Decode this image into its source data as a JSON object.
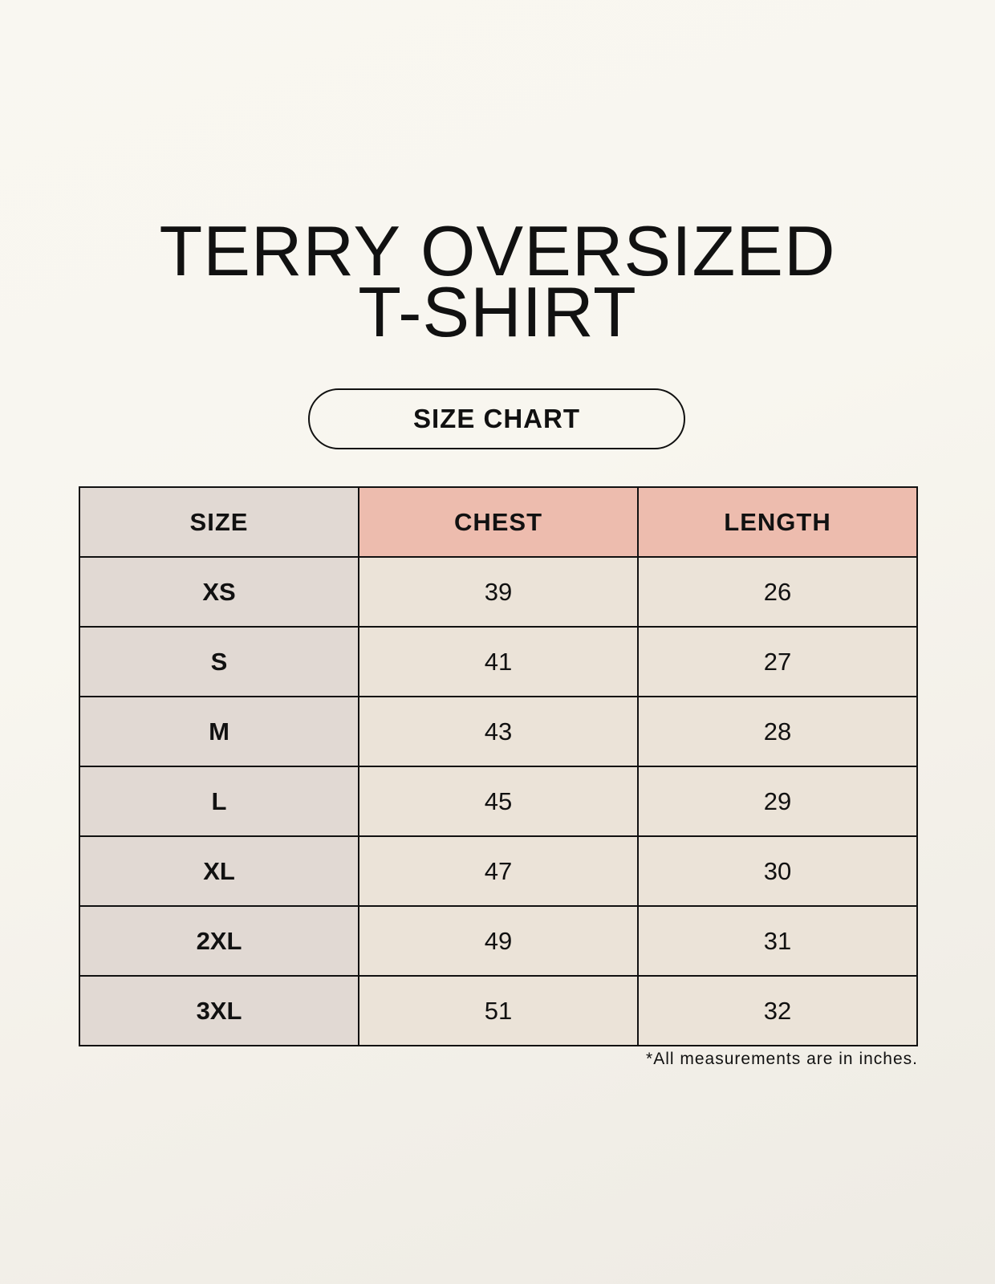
{
  "title_line1": "TERRY OVERSIZED",
  "title_line2": "T-SHIRT",
  "badge": "SIZE CHART",
  "table": {
    "headers": [
      "SIZE",
      "CHEST",
      "LENGTH"
    ],
    "rows": [
      [
        "XS",
        "39",
        "26"
      ],
      [
        "S",
        "41",
        "27"
      ],
      [
        "M",
        "43",
        "28"
      ],
      [
        "L",
        "45",
        "29"
      ],
      [
        "XL",
        "47",
        "30"
      ],
      [
        "2XL",
        "49",
        "31"
      ],
      [
        "3XL",
        "51",
        "32"
      ]
    ]
  },
  "footnote": "*All measurements are in inches.",
  "colors": {
    "header_size": "#e1d9d3",
    "header_measure": "#edbcae",
    "cell_size": "#e1d9d3",
    "cell_value": "#ebe3d8"
  }
}
